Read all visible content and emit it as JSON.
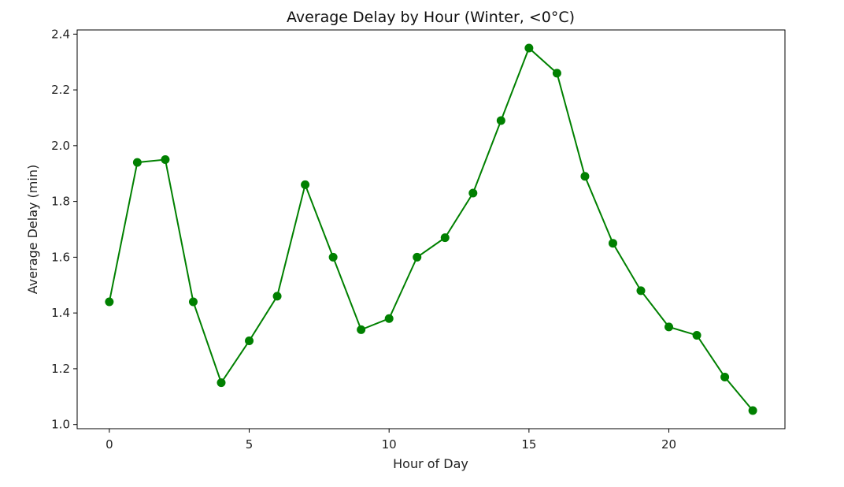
{
  "chart_data": {
    "type": "line",
    "title": "Average Delay by Hour (Winter, <0°C)",
    "xlabel": "Hour of Day",
    "ylabel": "Average Delay (min)",
    "xlim": [
      -1.15,
      24.15
    ],
    "ylim": [
      0.985,
      2.415
    ],
    "x_ticks": [
      0,
      5,
      10,
      15,
      20
    ],
    "x_tick_labels": [
      "0",
      "5",
      "10",
      "15",
      "20"
    ],
    "y_ticks": [
      1.0,
      1.2,
      1.4,
      1.6,
      1.8,
      2.0,
      2.2,
      2.4
    ],
    "y_tick_labels": [
      "1.0",
      "1.2",
      "1.4",
      "1.6",
      "1.8",
      "2.0",
      "2.2",
      "2.4"
    ],
    "grid": false,
    "legend": "none",
    "series": [
      {
        "color": "#008000",
        "marker": "circle",
        "x": [
          0,
          1,
          2,
          3,
          4,
          5,
          6,
          7,
          8,
          9,
          10,
          11,
          12,
          13,
          14,
          15,
          16,
          17,
          18,
          19,
          20,
          21,
          22,
          23
        ],
        "y": [
          1.44,
          1.94,
          1.95,
          1.44,
          1.15,
          1.3,
          1.46,
          1.86,
          1.6,
          1.34,
          1.38,
          1.6,
          1.67,
          1.83,
          2.09,
          2.35,
          2.26,
          1.89,
          1.65,
          1.48,
          1.35,
          1.32,
          1.17,
          1.05
        ]
      }
    ]
  }
}
